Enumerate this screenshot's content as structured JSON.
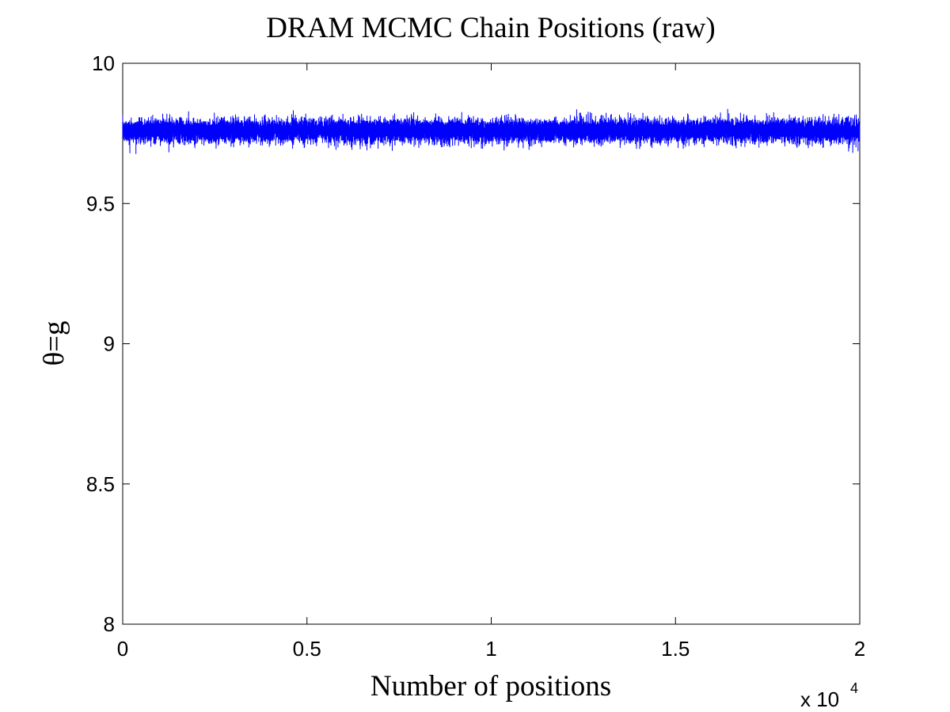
{
  "chart_data": {
    "type": "line",
    "title": "DRAM MCMC Chain Positions (raw)",
    "xlabel": "Number of positions",
    "ylabel": "θ=g",
    "x_exponent": {
      "prefix": "x 10",
      "power": "4"
    },
    "xlim": [
      0,
      20000
    ],
    "ylim": [
      8,
      10
    ],
    "x_ticks": [
      0,
      5000,
      10000,
      15000,
      20000
    ],
    "x_tick_labels": [
      "0",
      "0.5",
      "1",
      "1.5",
      "2"
    ],
    "y_ticks": [
      8,
      8.5,
      9,
      9.5,
      10
    ],
    "y_tick_labels": [
      "8",
      "8.5",
      "9",
      "9.5",
      "10"
    ],
    "grid": false,
    "series": [
      {
        "color": "#0000ff",
        "n_samples": 20000,
        "mean": 9.76,
        "std_dev": 0.02,
        "min": 9.67,
        "max": 9.85
      }
    ]
  }
}
